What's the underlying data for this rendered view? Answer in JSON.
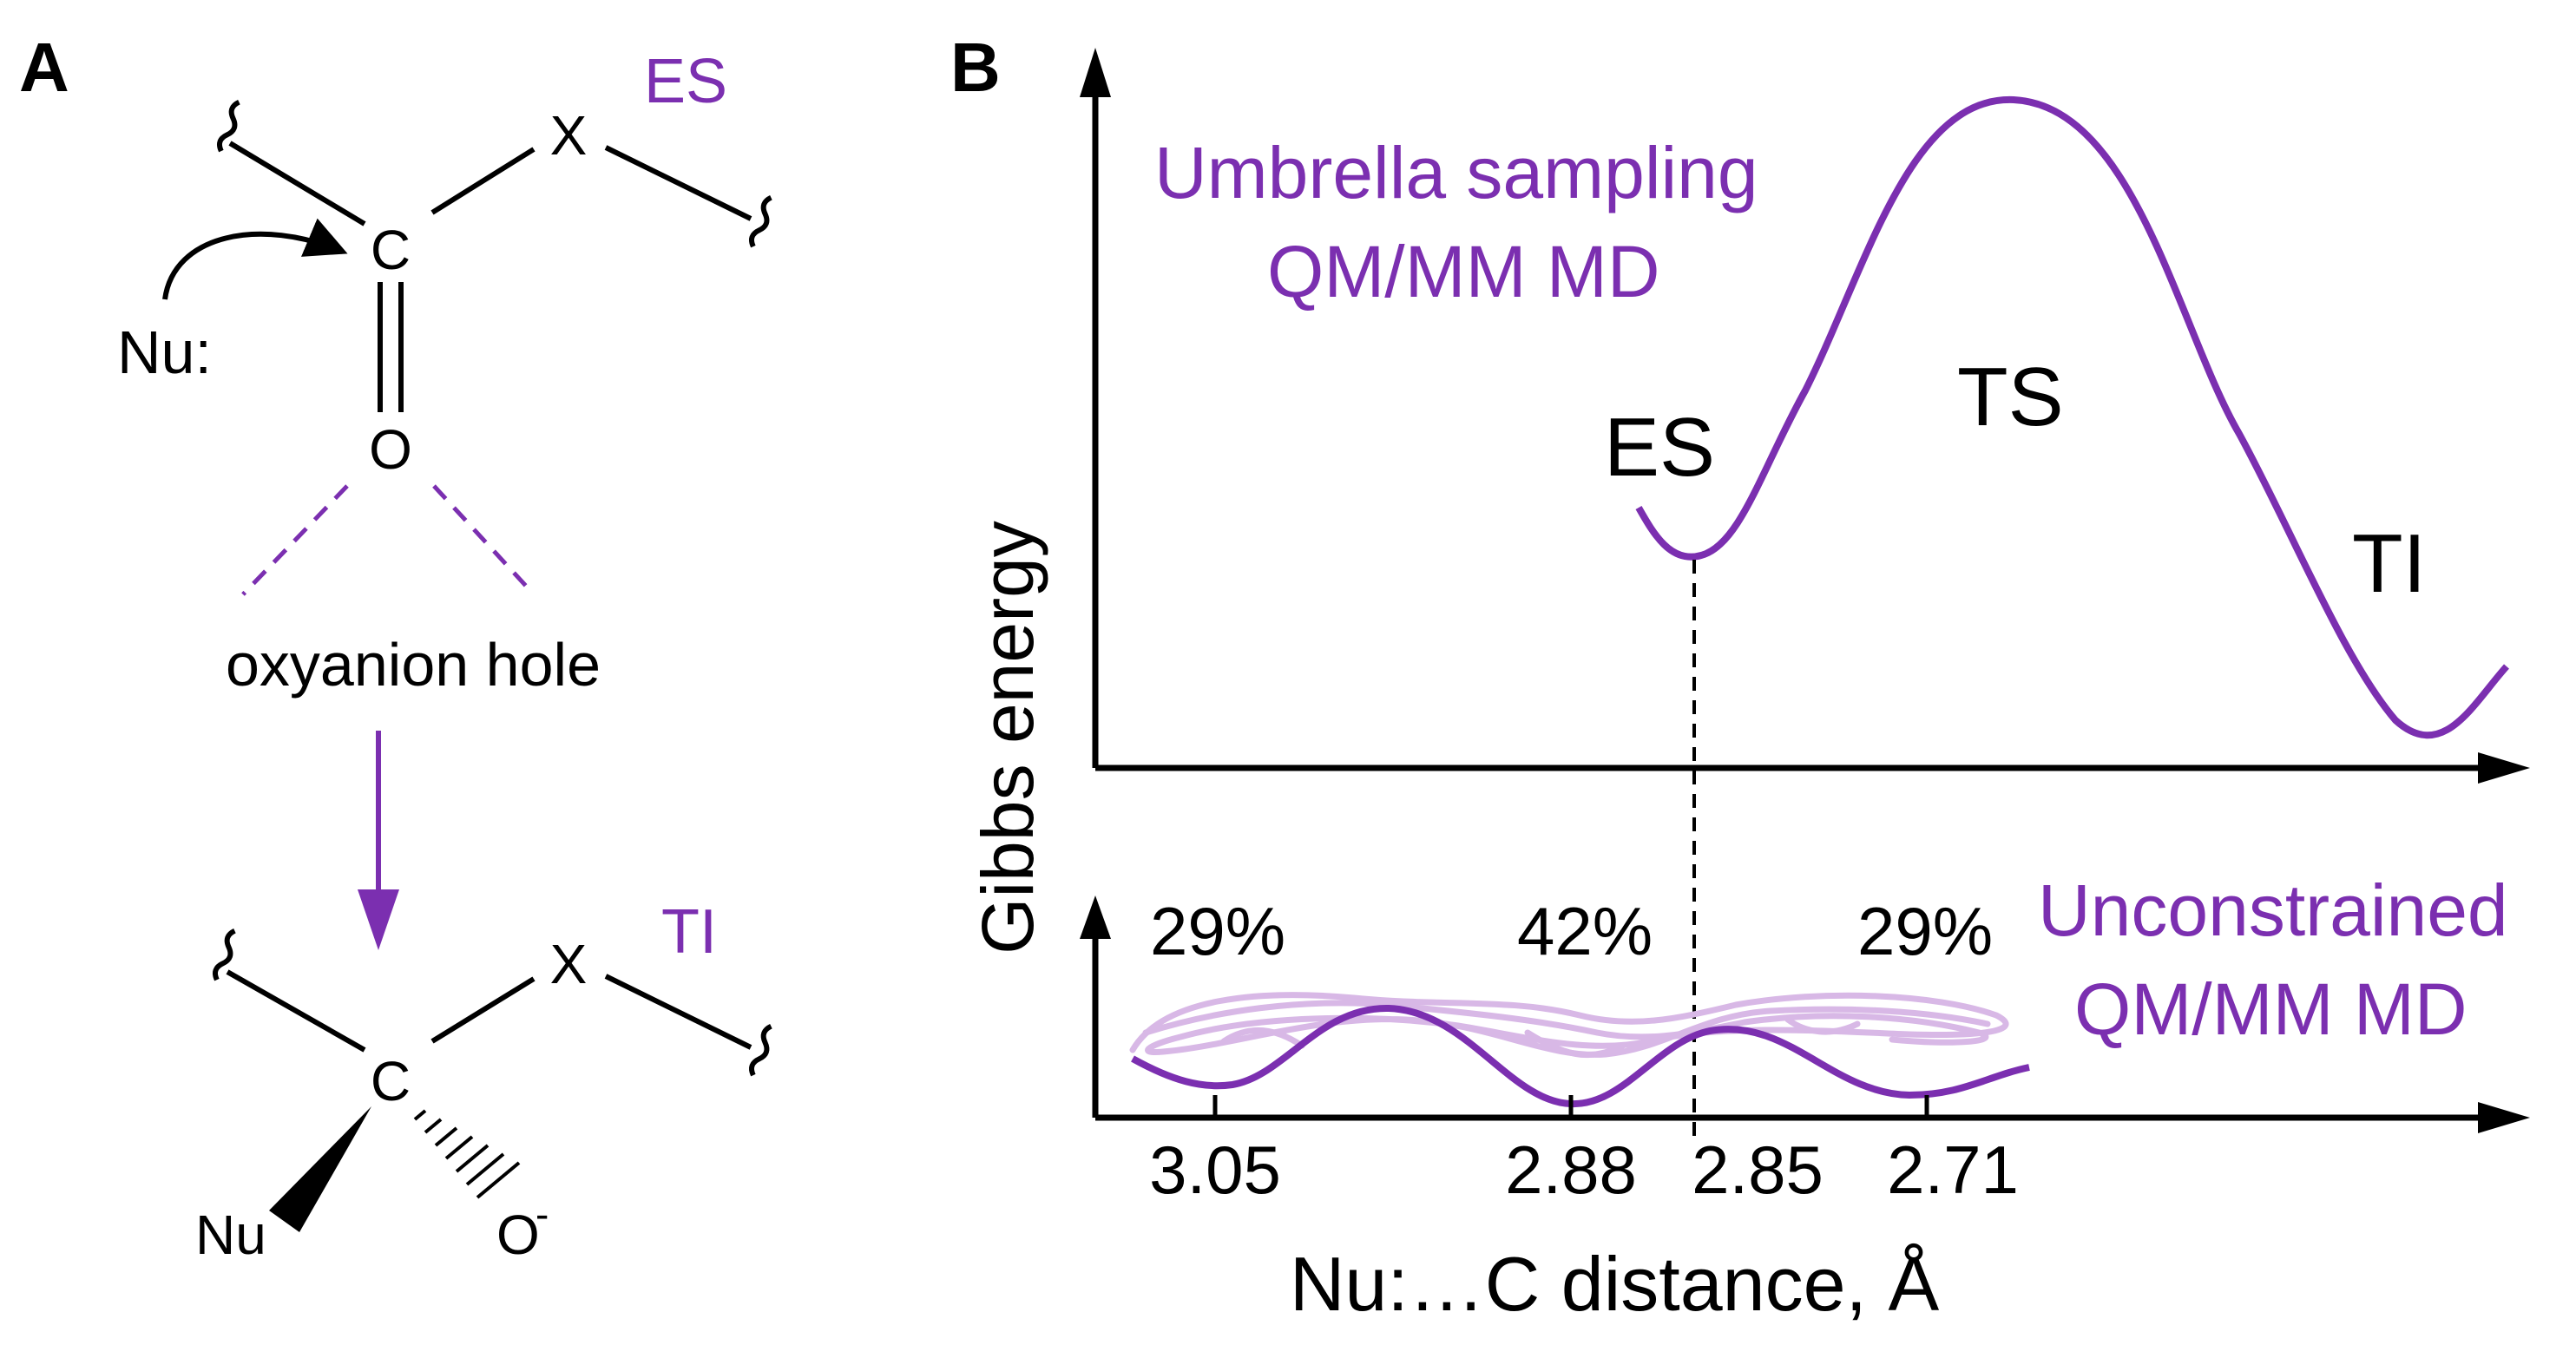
{
  "colors": {
    "purple": "#7b2fb0",
    "light_purple": "#d8b8e6",
    "black": "#000000"
  },
  "panel_a": {
    "letter": "A",
    "top": {
      "state_label": "ES",
      "carbon": "C",
      "oxygen": "O",
      "leaving_group": "X",
      "nucleophile": "Nu:",
      "oxyanion_hole": "oxyanion hole"
    },
    "bottom": {
      "state_label": "TI",
      "carbon": "C",
      "oxygen": "O",
      "oxygen_charge": "-",
      "leaving_group": "X",
      "nucleophile": "Nu"
    }
  },
  "panel_b": {
    "letter": "B",
    "y_axis_label": "Gibbs energy",
    "x_axis_label": "Nu:…C distance, Å",
    "upper": {
      "method_line1": "Umbrella sampling",
      "method_line2": "QM/MM MD",
      "labels": {
        "es": "ES",
        "ts": "TS",
        "ti": "TI"
      }
    },
    "lower": {
      "method_line1": "Unconstrained",
      "method_line2": "QM/MM MD",
      "percentages": [
        "29%",
        "42%",
        "29%"
      ],
      "tick_labels": [
        "3.05",
        "2.88",
        "2.85",
        "2.71"
      ]
    }
  }
}
